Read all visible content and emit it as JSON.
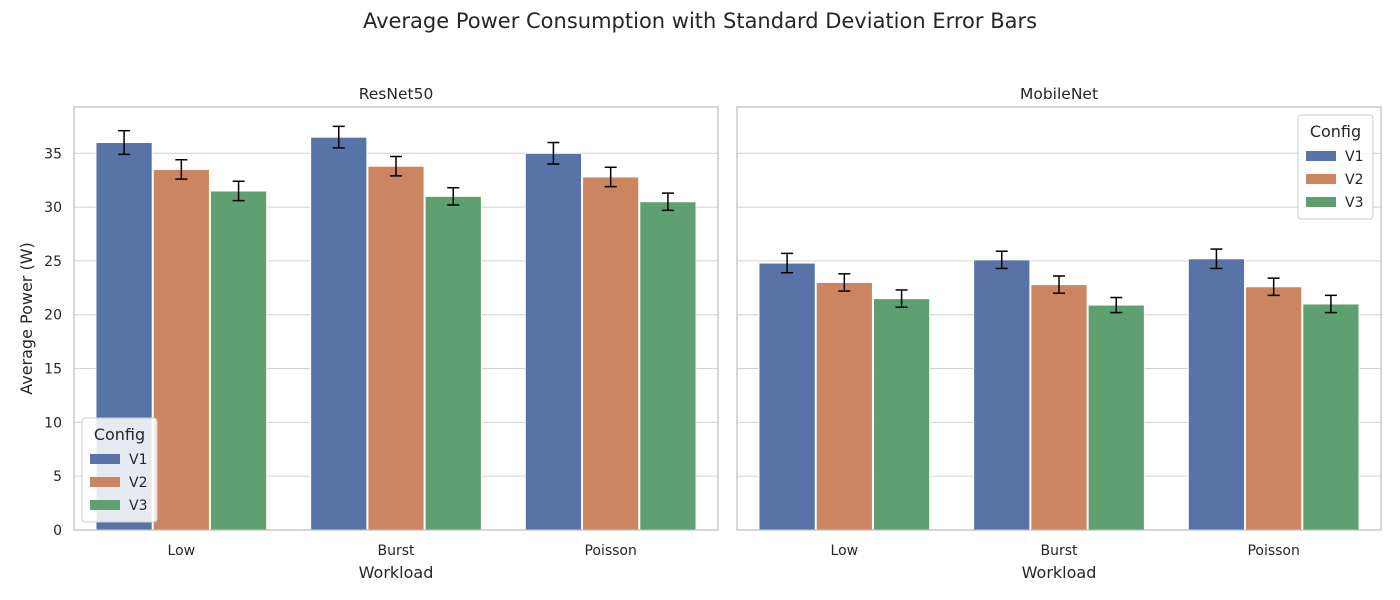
{
  "figure": {
    "title": "Average Power Consumption with Standard Deviation Error Bars"
  },
  "colors": {
    "V1": "#5874a6",
    "V2": "#cb8661",
    "V3": "#5ea06f",
    "grid": "#d0d0d0",
    "axes_edge": "#bfbfbf",
    "error_bar": "#000000"
  },
  "chart_data": [
    {
      "type": "bar",
      "title": "ResNet50",
      "xlabel": "Workload",
      "ylabel": "Average Power (W)",
      "categories": [
        "Low",
        "Burst",
        "Poisson"
      ],
      "ylim": [
        0,
        39.3
      ],
      "yticks": [
        0,
        5,
        10,
        15,
        20,
        25,
        30,
        35
      ],
      "grid": true,
      "legend": {
        "title": "Config",
        "position": "lower-left"
      },
      "series": [
        {
          "name": "V1",
          "values": [
            36.0,
            36.5,
            35.0
          ],
          "errors": [
            1.1,
            1.0,
            1.0
          ]
        },
        {
          "name": "V2",
          "values": [
            33.5,
            33.8,
            32.8
          ],
          "errors": [
            0.9,
            0.9,
            0.9
          ]
        },
        {
          "name": "V3",
          "values": [
            31.5,
            31.0,
            30.5
          ],
          "errors": [
            0.9,
            0.8,
            0.8
          ]
        }
      ]
    },
    {
      "type": "bar",
      "title": "MobileNet",
      "xlabel": "Workload",
      "ylabel": "",
      "categories": [
        "Low",
        "Burst",
        "Poisson"
      ],
      "ylim": [
        0,
        39.3
      ],
      "yticks": [
        0,
        5,
        10,
        15,
        20,
        25,
        30,
        35
      ],
      "grid": true,
      "legend": {
        "title": "Config",
        "position": "upper-right"
      },
      "series": [
        {
          "name": "V1",
          "values": [
            24.8,
            25.1,
            25.2
          ],
          "errors": [
            0.9,
            0.8,
            0.9
          ]
        },
        {
          "name": "V2",
          "values": [
            23.0,
            22.8,
            22.6
          ],
          "errors": [
            0.8,
            0.8,
            0.8
          ]
        },
        {
          "name": "V3",
          "values": [
            21.5,
            20.9,
            21.0
          ],
          "errors": [
            0.8,
            0.7,
            0.8
          ]
        }
      ]
    }
  ]
}
